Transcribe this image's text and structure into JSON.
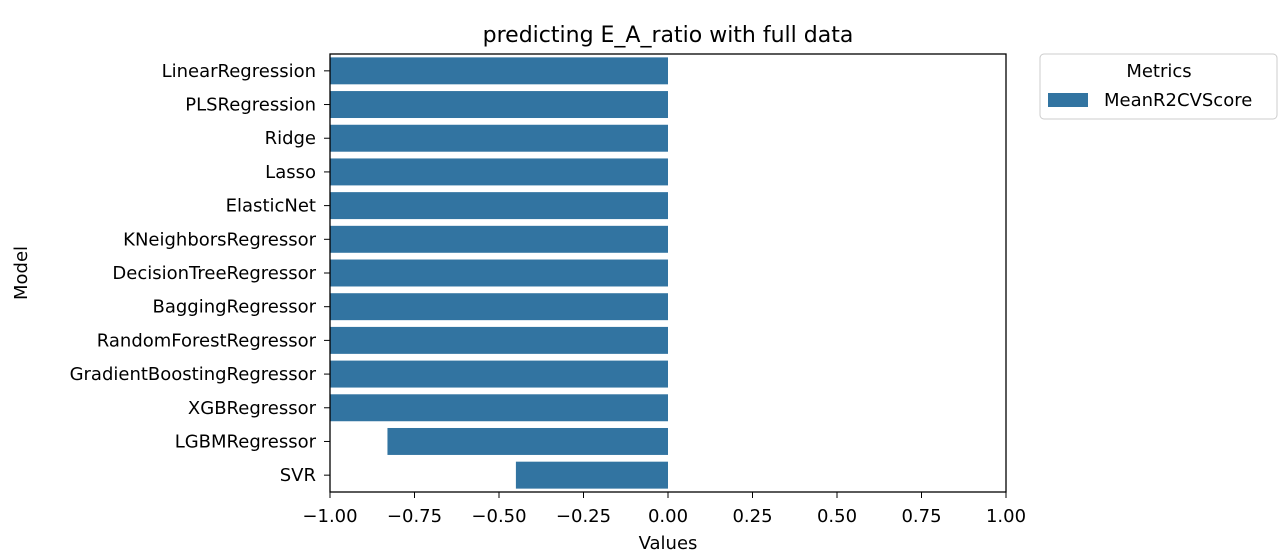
{
  "chart_data": {
    "type": "bar",
    "orientation": "horizontal",
    "title": "predicting E_A_ratio with full data",
    "xlabel": "Values",
    "ylabel": "Model",
    "xlim": [
      -1.0,
      1.0
    ],
    "xticks": [
      "−1.00",
      "−0.75",
      "−0.50",
      "−0.25",
      "0.00",
      "0.25",
      "0.50",
      "0.75",
      "1.00"
    ],
    "xtick_values": [
      -1.0,
      -0.75,
      -0.5,
      -0.25,
      0.0,
      0.25,
      0.5,
      0.75,
      1.0
    ],
    "categories": [
      "LinearRegression",
      "PLSRegression",
      "Ridge",
      "Lasso",
      "ElasticNet",
      "KNeighborsRegressor",
      "DecisionTreeRegressor",
      "BaggingRegressor",
      "RandomForestRegressor",
      "GradientBoostingRegressor",
      "XGBRegressor",
      "LGBMRegressor",
      "SVR"
    ],
    "series": [
      {
        "name": "MeanR2CVScore",
        "color": "#3274a1",
        "values": [
          -1.0,
          -1.0,
          -1.0,
          -1.0,
          -1.0,
          -1.0,
          -1.0,
          -1.0,
          -1.0,
          -1.0,
          -1.0,
          -0.83,
          -0.45
        ]
      }
    ],
    "legend": {
      "title": "Metrics",
      "placement": "outside-top-right"
    },
    "grid": false
  }
}
